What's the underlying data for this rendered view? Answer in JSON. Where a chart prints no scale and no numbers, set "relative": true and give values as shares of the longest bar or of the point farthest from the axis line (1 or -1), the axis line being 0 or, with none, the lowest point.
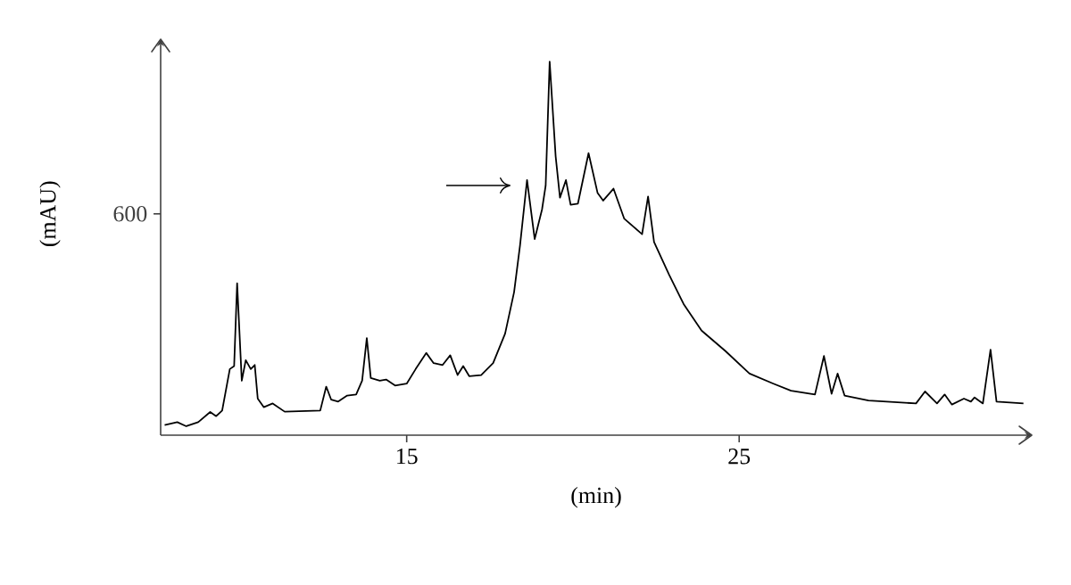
{
  "chart_data": {
    "type": "line",
    "relative": true,
    "xlabel": "(min)",
    "ylabel": "(mAU)",
    "xlim": [
      7.6,
      33.8
    ],
    "xticks": [
      15,
      25
    ],
    "marker": "none",
    "line_style": "solid",
    "annotations": [
      "600"
    ],
    "series": [
      {
        "color": "#000000",
        "x": [
          7.72,
          8.1,
          8.37,
          8.73,
          9.09,
          9.27,
          9.45,
          9.68,
          9.81,
          9.9,
          10.04,
          10.16,
          10.31,
          10.43,
          10.52,
          10.7,
          10.97,
          11.33,
          12.4,
          12.58,
          12.73,
          12.94,
          13.21,
          13.48,
          13.66,
          13.8,
          13.92,
          14.19,
          14.38,
          14.65,
          15.0,
          15.27,
          15.59,
          15.81,
          16.08,
          16.31,
          16.53,
          16.7,
          16.88,
          17.24,
          17.6,
          17.96,
          18.23,
          18.41,
          18.62,
          18.85,
          19.07,
          19.18,
          19.3,
          19.48,
          19.61,
          19.79,
          19.93,
          20.15,
          20.47,
          20.74,
          20.91,
          21.22,
          21.54,
          22.08,
          22.26,
          22.44,
          22.89,
          23.33,
          23.87,
          24.59,
          25.31,
          26.03,
          26.56,
          27.28,
          27.55,
          27.78,
          27.96,
          28.17,
          28.89,
          30.32,
          30.59,
          30.95,
          31.18,
          31.4,
          31.76,
          31.97,
          32.08,
          32.33,
          32.56,
          32.74,
          33.55
        ],
        "values": [
          0.027,
          0.035,
          0.024,
          0.035,
          0.062,
          0.051,
          0.066,
          0.177,
          0.185,
          0.407,
          0.146,
          0.201,
          0.177,
          0.188,
          0.098,
          0.075,
          0.085,
          0.063,
          0.066,
          0.13,
          0.095,
          0.09,
          0.106,
          0.109,
          0.146,
          0.26,
          0.153,
          0.146,
          0.149,
          0.133,
          0.138,
          0.177,
          0.22,
          0.193,
          0.188,
          0.214,
          0.161,
          0.185,
          0.158,
          0.161,
          0.193,
          0.272,
          0.383,
          0.509,
          0.683,
          0.525,
          0.604,
          0.668,
          1.0,
          0.747,
          0.636,
          0.683,
          0.617,
          0.62,
          0.755,
          0.649,
          0.628,
          0.66,
          0.58,
          0.538,
          0.639,
          0.517,
          0.43,
          0.351,
          0.28,
          0.225,
          0.165,
          0.138,
          0.119,
          0.109,
          0.212,
          0.111,
          0.165,
          0.106,
          0.093,
          0.085,
          0.117,
          0.085,
          0.109,
          0.082,
          0.098,
          0.09,
          0.101,
          0.085,
          0.229,
          0.09,
          0.085
        ]
      }
    ]
  }
}
